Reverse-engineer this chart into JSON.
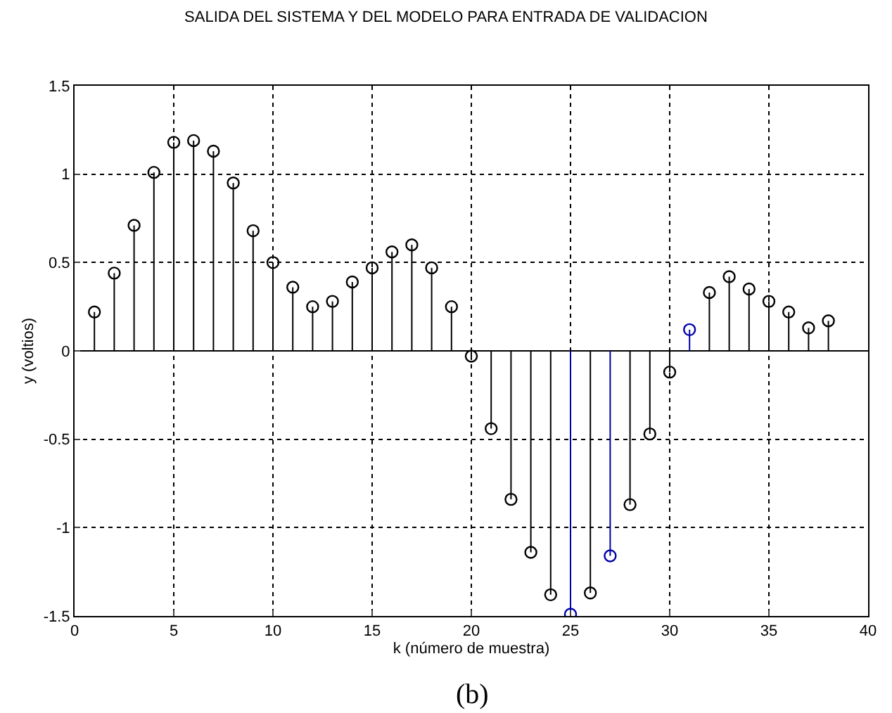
{
  "chart_data": {
    "type": "lollipop",
    "title": "SALIDA DEL SISTEMA Y DEL MODELO PARA ENTRADA DE VALIDACION",
    "xlabel": "k (número de muestra)",
    "ylabel": "y (voltios)",
    "x": [
      1,
      2,
      3,
      4,
      5,
      6,
      7,
      8,
      9,
      10,
      11,
      12,
      13,
      14,
      15,
      16,
      17,
      18,
      19,
      20,
      21,
      22,
      23,
      24,
      25,
      26,
      27,
      28,
      29,
      30,
      31,
      32,
      33,
      34,
      35,
      36,
      37,
      38
    ],
    "series": [
      {
        "color": "#000000",
        "values": [
          0.22,
          0.44,
          0.71,
          1.01,
          1.18,
          1.19,
          1.13,
          0.95,
          0.68,
          0.5,
          0.36,
          0.25,
          0.28,
          0.39,
          0.47,
          0.56,
          0.6,
          0.47,
          0.25,
          -0.03,
          -0.44,
          -0.84,
          -1.14,
          -1.38,
          null,
          -1.37,
          null,
          -0.87,
          -0.47,
          -0.12,
          null,
          0.33,
          0.42,
          0.35,
          0.28,
          0.22,
          0.13,
          0.17
        ]
      },
      {
        "color": "#0000aa",
        "values": [
          null,
          null,
          null,
          null,
          null,
          null,
          null,
          null,
          null,
          null,
          null,
          null,
          null,
          null,
          null,
          null,
          null,
          null,
          null,
          null,
          null,
          null,
          null,
          null,
          -1.49,
          null,
          -1.16,
          null,
          null,
          null,
          0.12,
          null,
          null,
          null,
          null,
          null,
          null,
          null
        ]
      }
    ],
    "xlim": [
      0,
      40
    ],
    "xticks": [
      0,
      5,
      10,
      15,
      20,
      25,
      30,
      35,
      40
    ],
    "ylim": [
      -1.5,
      1.5
    ],
    "yticks": [
      {
        "value": -1.5,
        "label": "-1.5"
      },
      -1,
      {
        "value": -0.5,
        "label": "-0.5"
      },
      0,
      {
        "value": 0.5,
        "label": "0.5"
      },
      1,
      {
        "value": 1.5,
        "label": "1.5"
      }
    ],
    "grid": true,
    "marker": "circle",
    "annotations": [
      "(b)"
    ]
  }
}
